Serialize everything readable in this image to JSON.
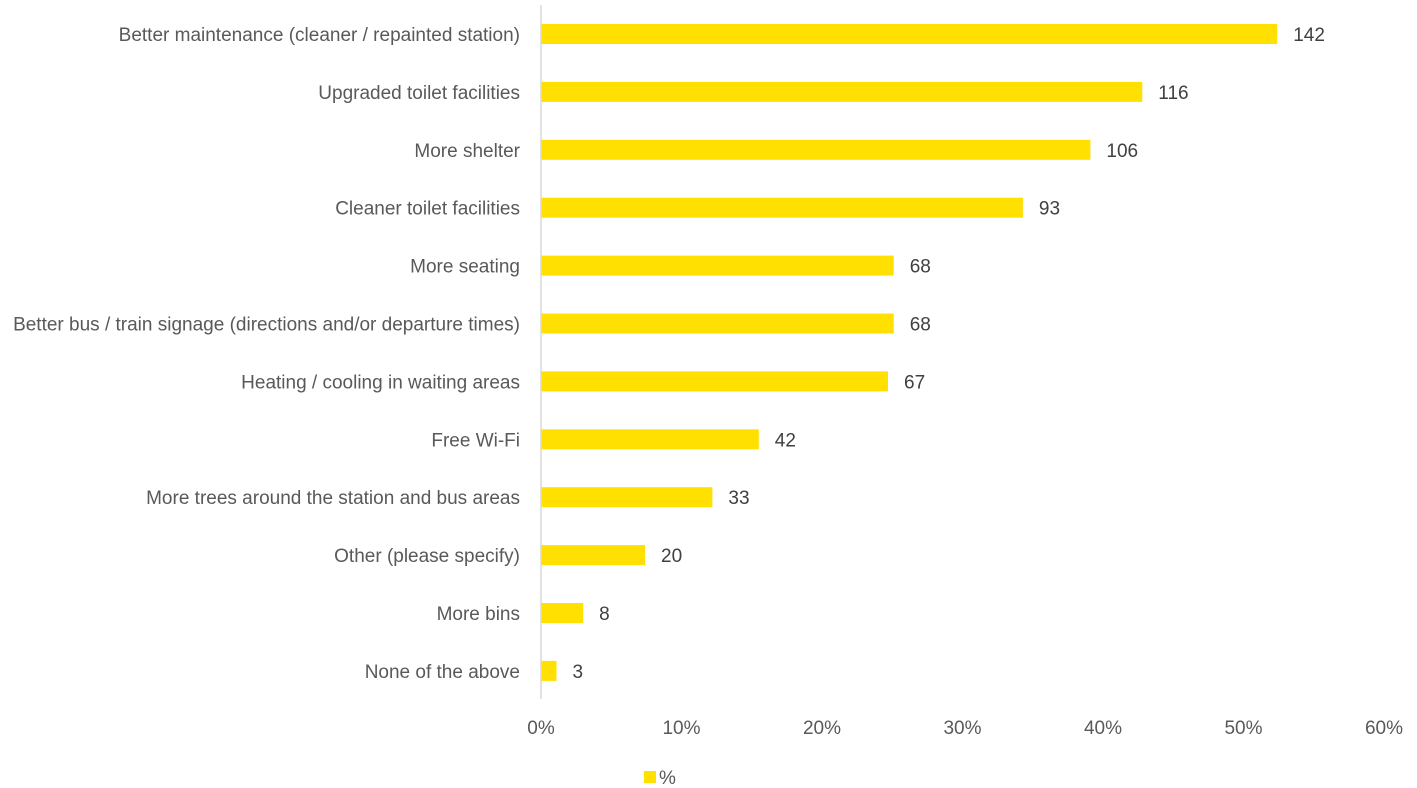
{
  "chart_data": {
    "type": "bar",
    "orientation": "horizontal",
    "categories": [
      "Better maintenance (cleaner / repainted station)",
      "Upgraded toilet facilities",
      "More shelter",
      "Cleaner toilet facilities",
      "More seating",
      "Better bus / train signage (directions and/or departure times)",
      "Heating / cooling in waiting areas",
      "Free Wi-Fi",
      "More trees around the station and bus areas",
      "Other (please specify)",
      "More bins",
      "None of the above"
    ],
    "series": [
      {
        "name": "%",
        "percent": [
          52.4,
          42.8,
          39.1,
          34.3,
          25.1,
          25.1,
          24.7,
          15.5,
          12.2,
          7.4,
          3.0,
          1.1
        ],
        "data_labels": [
          "142",
          "116",
          "106",
          "93",
          "68",
          "68",
          "67",
          "42",
          "33",
          "20",
          "8",
          "3"
        ]
      }
    ],
    "xticks": [
      "0%",
      "10%",
      "20%",
      "30%",
      "40%",
      "50%",
      "60%"
    ],
    "xlim": [
      0,
      60
    ],
    "legend_position": "bottom",
    "grid": false,
    "bar_color": "#FFE000",
    "axis_color": "#D9D9D9"
  }
}
